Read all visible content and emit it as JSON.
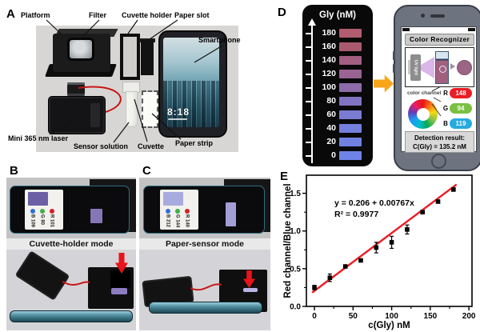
{
  "panels": {
    "a": "A",
    "b": "B",
    "c": "C",
    "d": "D",
    "e": "E"
  },
  "panel_a": {
    "labels": {
      "platform": "Platform",
      "filter": "Filter",
      "cuvette_holder": "Cuvette holder",
      "paper_slot": "Paper slot",
      "smartphone": "Smartphone",
      "laser": "Mini 365 nm laser",
      "sensor_solution": "Sensor solution",
      "cuvette": "Cuvette",
      "paper_strip": "Paper strip"
    },
    "phone_time": "8:18"
  },
  "panel_b": {
    "caption": "Cuvette-holder mode",
    "readings": [
      {
        "channel": "blue",
        "text": "B 109",
        "color": "#2f6fd6"
      },
      {
        "channel": "green",
        "text": "G 80",
        "color": "#3fae49"
      },
      {
        "channel": "red",
        "text": "R 101",
        "color": "#d62128"
      }
    ]
  },
  "panel_c": {
    "caption": "Paper-sensor mode",
    "readings": [
      {
        "channel": "blue",
        "text": "B 212",
        "color": "#2f6fd6"
      },
      {
        "channel": "green",
        "text": "G 144",
        "color": "#3fae49"
      },
      {
        "channel": "red",
        "text": "R 140",
        "color": "#d62128"
      }
    ]
  },
  "panel_d": {
    "scale_title": "Gly (nM)",
    "levels": [
      {
        "value": "180",
        "color": "#b25c70"
      },
      {
        "value": "160",
        "color": "#aa5a6e"
      },
      {
        "value": "140",
        "color": "#a25e80"
      },
      {
        "value": "120",
        "color": "#996392"
      },
      {
        "value": "100",
        "color": "#8d6ca9"
      },
      {
        "value": "80",
        "color": "#8173c3"
      },
      {
        "value": "60",
        "color": "#7a7cd3"
      },
      {
        "value": "40",
        "color": "#757fdd"
      },
      {
        "value": "20",
        "color": "#7181e2"
      },
      {
        "value": "0",
        "color": "#6e83e8"
      }
    ],
    "app": {
      "title": "Color Recognizer",
      "uv_label": "UV light",
      "channel_label": "color channel",
      "channels": [
        {
          "name": "R",
          "value": "148",
          "color": "#ec1c24"
        },
        {
          "name": "G",
          "value": "94",
          "color": "#7ac143"
        },
        {
          "name": "B",
          "value": "119",
          "color": "#27aae1"
        }
      ],
      "result_title": "Detection result:",
      "result_value": "C(Gly) = 135.2 nM"
    }
  },
  "chart_data": {
    "type": "scatter",
    "x": [
      0,
      20,
      40,
      60,
      80,
      100,
      120,
      140,
      160,
      180
    ],
    "y": [
      0.25,
      0.38,
      0.53,
      0.61,
      0.78,
      0.85,
      1.02,
      1.25,
      1.39,
      1.55
    ],
    "yerr": [
      0.03,
      0.05,
      0.02,
      0.02,
      0.07,
      0.08,
      0.06,
      0.02,
      0.02,
      0.02
    ],
    "fit": {
      "slope": 0.00767,
      "intercept": 0.206,
      "equation": "y = 0.206 + 0.00767x",
      "r_squared": "R² = 0.9977"
    },
    "xlabel": "c(Gly) nM",
    "ylabel": "Red channel/Blue channel",
    "xlim": [
      -10.4,
      204
    ],
    "ylim": [
      0,
      1.74
    ],
    "xticks": [
      0,
      50,
      100,
      150,
      200
    ],
    "xticks_minor": [
      25,
      75,
      125,
      175
    ],
    "yticks": [
      0.0,
      0.5,
      1.0,
      1.5
    ],
    "ytick_labels": [
      "0.0",
      "0.5",
      "1.0",
      "1.5"
    ],
    "yticks_minor": [
      0.25,
      0.75,
      1.25
    ],
    "line_color": "#ed1c24",
    "marker": "black-square-with-error-bars",
    "grid": false,
    "legend": false
  }
}
